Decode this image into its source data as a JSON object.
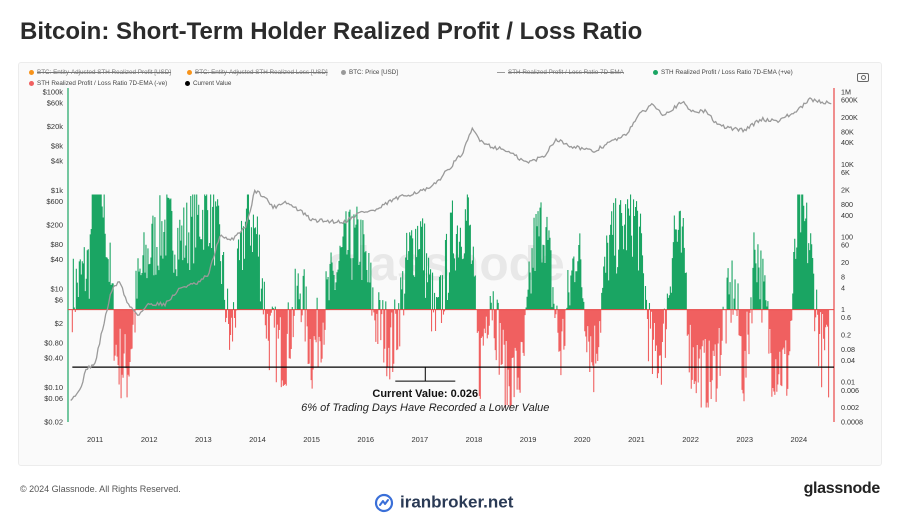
{
  "title": "Bitcoin: Short-Term Holder Realized Profit / Loss Ratio",
  "legend": [
    {
      "label": "BTC: Entity-Adjusted STH Realized Profit [USD]",
      "color": "#f7931a",
      "struck": true
    },
    {
      "label": "BTC: Entity-Adjusted STH Realized Loss [USD]",
      "color": "#f7931a",
      "struck": true
    },
    {
      "label": "BTC: Price [USD]",
      "color": "#999999",
      "struck": false
    },
    {
      "label": "STH Realized Profit / Loss Ratio 7D-EMA",
      "color": "#999999",
      "struck": true,
      "line": true
    },
    {
      "label": "STH Realized Profit / Loss Ratio 7D-EMA (+ve)",
      "color": "#1aa563",
      "struck": false
    },
    {
      "label": "STH Realized Profit / Loss Ratio 7D-EMA (-ve)",
      "color": "#f06060",
      "struck": false
    },
    {
      "label": "Current Value",
      "color": "#000000",
      "struck": false
    }
  ],
  "camera_icon": "camera-icon",
  "footer": {
    "copyright": "© 2024 Glassnode. All Rights Reserved.",
    "brand": "glassnode",
    "watermark_site": "iranbroker.net",
    "watermark_logo": "glassnode"
  },
  "colors": {
    "price": "#9a9a9a",
    "positive": "#1aa563",
    "negative": "#f06060",
    "threshold": "#e84545",
    "current": "#000000"
  },
  "chart_data": {
    "type": "line",
    "title": "Bitcoin: Short-Term Holder Realized Profit / Loss Ratio",
    "x_ticks": [
      "2011",
      "2012",
      "2013",
      "2014",
      "2015",
      "2016",
      "2017",
      "2018",
      "2019",
      "2020",
      "2021",
      "2022",
      "2023",
      "2024"
    ],
    "x_range": [
      2010.5,
      2024.65
    ],
    "left_axis": {
      "scale": "log",
      "range": [
        0.02,
        100000
      ],
      "ticks": [
        "$100k",
        "$60k",
        "$20k",
        "$8k",
        "$4k",
        "$1k",
        "$600",
        "$200",
        "$80",
        "$40",
        "$10",
        "$6",
        "$2",
        "$0.80",
        "$0.40",
        "$0.10",
        "$0.06",
        "$0.02"
      ],
      "tick_values": [
        100000,
        60000,
        20000,
        8000,
        4000,
        1000,
        600,
        200,
        80,
        40,
        10,
        6,
        2,
        0.8,
        0.4,
        0.1,
        0.06,
        0.02
      ]
    },
    "right_axis": {
      "scale": "log",
      "range": [
        0.0008,
        1000000
      ],
      "ticks": [
        "1M",
        "600K",
        "200K",
        "80K",
        "40K",
        "10K",
        "6K",
        "2K",
        "800",
        "400",
        "100",
        "60",
        "20",
        "8",
        "4",
        "1",
        "0.6",
        "0.2",
        "0.08",
        "0.04",
        "0.01",
        "0.006",
        "0.002",
        "0.0008"
      ],
      "tick_values": [
        1000000,
        600000,
        200000,
        80000,
        40000,
        10000,
        6000,
        2000,
        800,
        400,
        100,
        60,
        20,
        8,
        4,
        1,
        0.6,
        0.2,
        0.08,
        0.04,
        0.01,
        0.006,
        0.002,
        0.0008
      ]
    },
    "threshold": 1,
    "series": [
      {
        "name": "BTC: Price [USD]",
        "axis": "left",
        "x": [
          2010.55,
          2010.7,
          2010.85,
          2011.0,
          2011.1,
          2011.3,
          2011.45,
          2011.6,
          2011.8,
          2012.0,
          2012.3,
          2012.6,
          2012.9,
          2013.1,
          2013.3,
          2013.5,
          2013.8,
          2013.95,
          2014.1,
          2014.3,
          2014.5,
          2014.8,
          2015.0,
          2015.3,
          2015.6,
          2015.9,
          2016.2,
          2016.5,
          2016.9,
          2017.2,
          2017.5,
          2017.8,
          2017.97,
          2018.1,
          2018.3,
          2018.6,
          2018.9,
          2019.0,
          2019.3,
          2019.5,
          2019.8,
          2020.0,
          2020.2,
          2020.5,
          2020.8,
          2021.0,
          2021.3,
          2021.5,
          2021.85,
          2022.0,
          2022.3,
          2022.5,
          2022.9,
          2023.0,
          2023.3,
          2023.6,
          2023.9,
          2024.0,
          2024.2,
          2024.5,
          2024.6
        ],
        "y": [
          0.06,
          0.08,
          0.25,
          0.3,
          1,
          9,
          15,
          5,
          3,
          5,
          5,
          11,
          13,
          20,
          120,
          95,
          200,
          1000,
          800,
          450,
          600,
          380,
          250,
          240,
          230,
          360,
          400,
          650,
          900,
          1100,
          2500,
          6000,
          18000,
          11000,
          8000,
          6500,
          4000,
          3700,
          5000,
          11000,
          8000,
          7200,
          6000,
          9500,
          13000,
          30000,
          58000,
          35000,
          62000,
          42000,
          40000,
          21000,
          17000,
          17000,
          28000,
          26000,
          37000,
          44000,
          70000,
          61000,
          62000
        ]
      },
      {
        "name": "STH Realized Profit / Loss Ratio 7D-EMA",
        "axis": "right",
        "x": [
          2010.6,
          2010.9,
          2011.0,
          2011.2,
          2011.4,
          2011.6,
          2011.8,
          2012.0,
          2012.3,
          2012.6,
          2012.9,
          2013.1,
          2013.3,
          2013.5,
          2013.8,
          2014.0,
          2014.2,
          2014.5,
          2014.8,
          2015.0,
          2015.3,
          2015.6,
          2015.9,
          2016.2,
          2016.5,
          2016.8,
          2017.0,
          2017.3,
          2017.6,
          2017.9,
          2018.1,
          2018.3,
          2018.6,
          2018.9,
          2019.1,
          2019.3,
          2019.6,
          2019.9,
          2020.2,
          2020.5,
          2020.8,
          2021.0,
          2021.3,
          2021.5,
          2021.7,
          2021.9,
          2022.0,
          2022.2,
          2022.4,
          2022.6,
          2022.8,
          2023.0,
          2023.2,
          2023.5,
          2023.8,
          2024.0,
          2024.2,
          2024.4,
          2024.6
        ],
        "y": [
          3,
          20,
          50000,
          200,
          0.05,
          0.02,
          5,
          40,
          200,
          80,
          300,
          600,
          60,
          0.1,
          500,
          100,
          0.2,
          0.06,
          5,
          0.05,
          2,
          40,
          80,
          0.5,
          0.1,
          30,
          200,
          0.3,
          100,
          400,
          0.02,
          5,
          0.01,
          0.02,
          50,
          300,
          0.05,
          80,
          0.03,
          60,
          200,
          400,
          0.04,
          0.1,
          200,
          20,
          0.05,
          0.02,
          0.01,
          0.3,
          5,
          0.01,
          100,
          0.05,
          0.02,
          800,
          60,
          0.1,
          0.026
        ]
      },
      {
        "name": "Current Value",
        "axis": "right",
        "value": 0.026
      }
    ],
    "annotations": [
      {
        "text": "Current Value: 0.026",
        "bold": true
      },
      {
        "text": "6% of Trading Days Have Recorded a Lower Value",
        "italic": true
      }
    ],
    "watermark": "glassnode"
  }
}
